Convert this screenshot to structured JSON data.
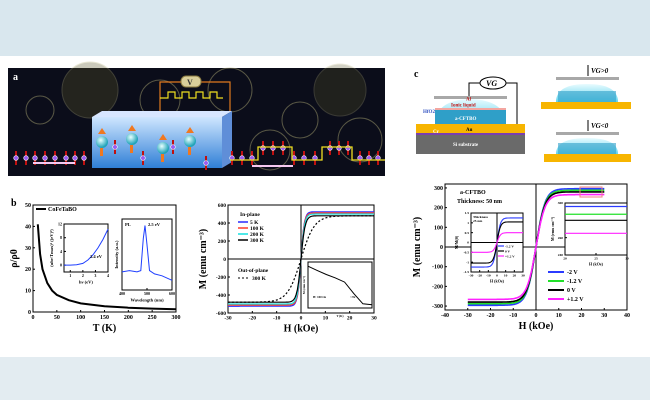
{
  "figure": {
    "panel_a": {
      "label": "a",
      "voltmeter": "V"
    },
    "panel_b": {
      "label": "b"
    },
    "panel_c": {
      "label": "c",
      "layers": {
        "al": "Al",
        "ionic": "Ionic liquid",
        "hfo2": "HfO2",
        "film": "a-CFTBO",
        "au": "Au",
        "cr": "Cr",
        "substrate": "Si substrate"
      },
      "gate_voltage": "VG",
      "gate_pos": "VG>0",
      "gate_neg": "VG<0"
    }
  },
  "chart_data": [
    {
      "id": "b_rho",
      "type": "line",
      "xlabel": "T (K)",
      "ylabel": "ρ/ρ0",
      "xlim": [
        0,
        300
      ],
      "ylim": [
        0,
        50
      ],
      "xticks": [
        0,
        50,
        100,
        150,
        200,
        250,
        300
      ],
      "yticks": [
        0,
        10,
        20,
        30,
        40,
        50
      ],
      "legend": "top-left",
      "series": [
        {
          "name": "CoFeTaBO",
          "color": "#000000",
          "x": [
            10,
            15,
            20,
            30,
            40,
            50,
            75,
            100,
            150,
            200,
            250,
            300
          ],
          "y": [
            41,
            27,
            20,
            13.5,
            10,
            8,
            5.5,
            4,
            2.7,
            2,
            1.6,
            1.3
          ]
        }
      ]
    },
    {
      "id": "b_rho_inset_absorption",
      "type": "line",
      "xlabel": "hν (eV)",
      "ylabel": "(αhν/Tmax)² ((eV)²)",
      "xlim": [
        0.5,
        4
      ],
      "ylim": [
        -2,
        12
      ],
      "xticks": [
        1,
        2,
        3,
        4
      ],
      "yticks": [
        0,
        4,
        8,
        12
      ],
      "annotation": "2.4 eV",
      "series": [
        {
          "color": "#1f3fff",
          "x": [
            0.5,
            1,
            1.5,
            2,
            2.4,
            2.8,
            3.2,
            3.6,
            4
          ],
          "y": [
            0,
            0,
            0.1,
            0.5,
            1.5,
            3,
            5,
            7.5,
            10.5
          ]
        }
      ]
    },
    {
      "id": "b_rho_inset_pl",
      "type": "line",
      "xlabel": "Wavelength (nm)",
      "ylabel": "Intensity (a.u.)",
      "xlim": [
        400,
        600
      ],
      "xticks": [
        400,
        500,
        600
      ],
      "annotation_label": "PL",
      "annotation": "2.5 eV",
      "series": [
        {
          "color": "#1f3fff",
          "x": [
            400,
            430,
            460,
            475,
            485,
            492,
            500,
            510,
            530,
            560,
            600
          ],
          "y": [
            0.28,
            0.3,
            0.28,
            0.3,
            0.8,
            1.0,
            0.7,
            0.3,
            0.25,
            0.22,
            0.15
          ]
        }
      ]
    },
    {
      "id": "b_mh",
      "type": "line",
      "xlabel": "H (kOe)",
      "ylabel": "M (emu cm⁻³)",
      "xlim": [
        -30,
        30
      ],
      "ylim": [
        -600,
        600
      ],
      "xticks": [
        -30,
        -20,
        -10,
        0,
        10,
        20,
        30
      ],
      "yticks": [
        -600,
        -400,
        -200,
        0,
        200,
        400,
        600
      ],
      "group_labels": [
        "In-plane",
        "Out-of-plane"
      ],
      "legend": "top-left",
      "series": [
        {
          "name": "5 K",
          "group": "In-plane",
          "color": "#2b2bff",
          "Ms": 525,
          "h0": 1.4
        },
        {
          "name": "100 K",
          "group": "In-plane",
          "color": "#ff3a2a",
          "Ms": 512,
          "h0": 1.4
        },
        {
          "name": "200 K",
          "group": "In-plane",
          "color": "#14e0e0",
          "Ms": 500,
          "h0": 1.5
        },
        {
          "name": "300 K",
          "group": "In-plane",
          "color": "#000000",
          "Ms": 480,
          "h0": 1.7
        },
        {
          "name": "300 K",
          "group": "Out-of-plane",
          "color": "#000000",
          "Ms": 480,
          "h0": 5.5,
          "dashed": true
        }
      ]
    },
    {
      "id": "b_mh_inset",
      "type": "line",
      "xlabel": "T (K)",
      "ylabel": "M (emu cm⁻³)",
      "annotation": "H: 100 Oe",
      "annotation2": "~Tc",
      "series": [
        {
          "color": "#000000",
          "x": [
            0,
            50,
            100,
            150,
            200,
            250,
            300,
            350
          ],
          "y": [
            1,
            0.9,
            0.8,
            0.72,
            0.62,
            0.35,
            0.1,
            0.08
          ]
        }
      ]
    },
    {
      "id": "c_mh",
      "type": "line",
      "xlabel": "H (kOe)",
      "ylabel": "M (emu cm⁻³)",
      "xlim": [
        -40,
        40
      ],
      "ylim": [
        -320,
        320
      ],
      "xticks": [
        -40,
        -30,
        -20,
        -10,
        0,
        10,
        20,
        30,
        40
      ],
      "yticks": [
        -300,
        -200,
        -100,
        0,
        100,
        200,
        300
      ],
      "annotations": [
        "a-CFTBO",
        "Thickness: 50 nm"
      ],
      "legend": "bottom-right",
      "series": [
        {
          "name": "-2 V",
          "color": "#2b3bff",
          "Ms": 296,
          "h0": 4.0
        },
        {
          "name": "-1.2 V",
          "color": "#22e02a",
          "Ms": 288,
          "h0": 4.0
        },
        {
          "name": "0 V",
          "color": "#000000",
          "Ms": 280,
          "h0": 4.0
        },
        {
          "name": "+1.2 V",
          "color": "#ff22ff",
          "Ms": 266,
          "h0": 4.0
        }
      ]
    },
    {
      "id": "c_inset_norm",
      "type": "line",
      "xlabel": "H (kOe)",
      "ylabel": "M/M(0)",
      "xlim": [
        -30,
        30
      ],
      "ylim": [
        -1.5,
        1.5
      ],
      "xticks": [
        -30,
        -20,
        -10,
        0,
        10,
        20,
        30
      ],
      "yticks": [
        -1.5,
        -1.0,
        -0.5,
        0.0,
        0.5,
        1.0,
        1.5
      ],
      "annotations": [
        "Thickness",
        "25 nm"
      ],
      "series": [
        {
          "name": "-1.2 V",
          "color": "#2b3bff",
          "Ms": 1.25,
          "h0": 4
        },
        {
          "name": "0 V",
          "color": "#000000",
          "Ms": 1.05,
          "h0": 4
        },
        {
          "name": "+1.2 V",
          "color": "#ff22ff",
          "Ms": 0.5,
          "h0": 4
        }
      ]
    },
    {
      "id": "c_inset_zoom",
      "type": "line",
      "xlabel": "H (kOe)",
      "ylabel": "M (emu cm⁻³)",
      "xlim": [
        20,
        30
      ],
      "ylim": [
        240,
        300
      ],
      "xticks": [
        20,
        25,
        30
      ],
      "yticks": [
        240,
        260,
        300
      ],
      "series": [
        {
          "color": "#2b3bff",
          "value": 296
        },
        {
          "color": "#22e02a",
          "value": 287
        },
        {
          "color": "#000000",
          "value": 280
        },
        {
          "color": "#ff22ff",
          "value": 265
        }
      ]
    }
  ]
}
